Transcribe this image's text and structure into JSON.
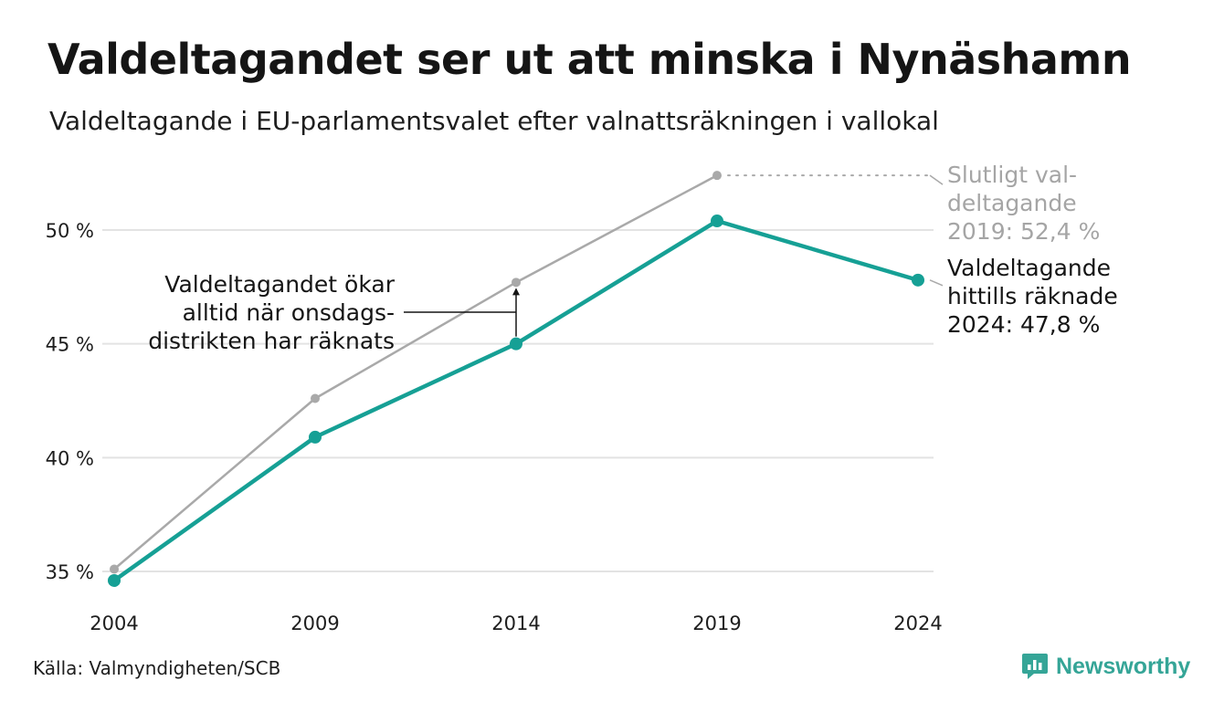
{
  "title": "Valdeltagandet ser ut att minska i Nynäshamn",
  "subtitle": "Valdeltagande i EU-parlamentsvalet efter valnattsräkningen i vallokal",
  "source": "Källa: Valmyndigheten/SCB",
  "brand": "Newsworthy",
  "colors": {
    "primary": "#16a095",
    "final": "#a9a9a9",
    "grid": "#e3e3e3",
    "brand": "#35a597"
  },
  "chart_data": {
    "type": "line",
    "categories": [
      "2004",
      "2009",
      "2014",
      "2019",
      "2024"
    ],
    "ylim": [
      34,
      52.6
    ],
    "yticks": [
      {
        "value": 35,
        "label": "35 %"
      },
      {
        "value": 40,
        "label": "40 %"
      },
      {
        "value": 45,
        "label": "45 %"
      },
      {
        "value": 50,
        "label": "50 %"
      }
    ],
    "grid": true,
    "series": [
      {
        "key": "final",
        "values": [
          35.1,
          42.6,
          47.7,
          52.4,
          null
        ]
      },
      {
        "key": "counted",
        "values": [
          34.6,
          40.9,
          45.0,
          50.4,
          47.8
        ]
      }
    ],
    "annotations": {
      "final_label": [
        "Slutligt val-",
        "deltagande",
        "2019: 52,4 %"
      ],
      "counted_label": [
        "Valdeltagande",
        "hittills räknade",
        "2024: 47,8 %"
      ],
      "increase_note": [
        "Valdeltagandet ökar",
        "alltid när onsdags-",
        "distrikten har räknats"
      ]
    }
  }
}
